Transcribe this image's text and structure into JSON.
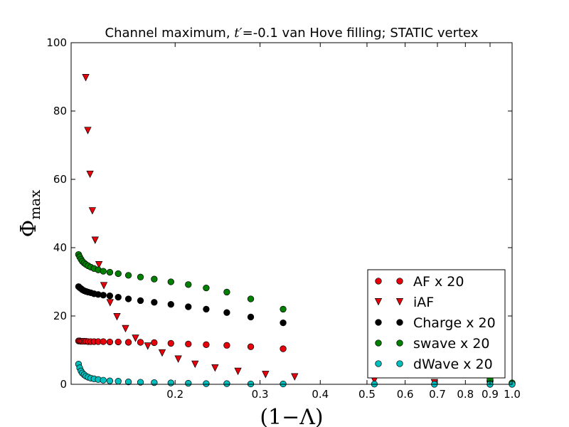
{
  "chart_data": {
    "type": "scatter",
    "title_prefix": "Channel maximum, ",
    "title_math": "t′",
    "title_suffix": "=-0.1 van Hove filling; STATIC vertex",
    "xlabel": "(1−Λ)",
    "ylabel_main": "Φ",
    "ylabel_sub": "max",
    "xscale": "log",
    "xlim": [
      0.1217,
      1.0
    ],
    "ylim": [
      0,
      100
    ],
    "x_ticks": [
      {
        "value": 0.2,
        "label": "0.2"
      },
      {
        "value": 0.3,
        "label": "0.3"
      },
      {
        "value": 0.4,
        "label": "0.4"
      },
      {
        "value": 0.5,
        "label": "0.5"
      },
      {
        "value": 0.6,
        "label": "0.6"
      },
      {
        "value": 0.7,
        "label": "0.7"
      },
      {
        "value": 0.8,
        "label": "0.8"
      },
      {
        "value": 0.9,
        "label": "0.9"
      },
      {
        "value": 1.0,
        "label": "1.0"
      }
    ],
    "y_ticks": [
      {
        "value": 0,
        "label": "0"
      },
      {
        "value": 20,
        "label": "20"
      },
      {
        "value": 40,
        "label": "40"
      },
      {
        "value": 60,
        "label": "60"
      },
      {
        "value": 80,
        "label": "80"
      },
      {
        "value": 100,
        "label": "100"
      }
    ],
    "legend_position": "lower-right",
    "series": [
      {
        "name": "AF x 20",
        "marker": "circle",
        "color": "#e8000b",
        "x": [
          0.1261,
          0.1268,
          0.1276,
          0.1284,
          0.1295,
          0.1306,
          0.132,
          0.1337,
          0.1358,
          0.1385,
          0.1419,
          0.1464,
          0.1524,
          0.16,
          0.1695,
          0.181,
          0.196,
          0.213,
          0.232,
          0.256,
          0.287,
          0.335,
          0.518,
          0.69,
          0.9,
          1.0
        ],
        "y": [
          12.7,
          12.7,
          12.6,
          12.6,
          12.6,
          12.6,
          12.5,
          12.5,
          12.5,
          12.5,
          12.5,
          12.4,
          12.4,
          12.3,
          12.3,
          12.2,
          12.0,
          11.8,
          11.6,
          11.4,
          11.0,
          10.4,
          5.4,
          2.9,
          0.8,
          0.2
        ]
      },
      {
        "name": "iAF",
        "marker": "triangle-down",
        "color": "#e8000b",
        "x": [
          0.1305,
          0.1318,
          0.1332,
          0.1347,
          0.1365,
          0.139,
          0.1423,
          0.1466,
          0.1515,
          0.1578,
          0.1655,
          0.1755,
          0.188,
          0.203,
          0.22,
          0.242,
          0.27,
          0.308,
          0.354,
          0.518,
          0.69,
          0.9
        ],
        "y": [
          89.8,
          74.3,
          61.5,
          50.8,
          42.2,
          35.0,
          28.9,
          23.9,
          19.8,
          16.3,
          13.5,
          11.2,
          9.2,
          7.4,
          5.9,
          4.8,
          3.8,
          2.9,
          2.2,
          1.2,
          0.5,
          0.1
        ]
      },
      {
        "name": "Charge x 20",
        "marker": "circle",
        "color": "#000000",
        "x": [
          0.1261,
          0.1268,
          0.1276,
          0.1284,
          0.1295,
          0.1306,
          0.132,
          0.1337,
          0.1358,
          0.1385,
          0.1419,
          0.1464,
          0.1524,
          0.16,
          0.1695,
          0.181,
          0.196,
          0.213,
          0.232,
          0.256,
          0.287,
          0.335,
          0.518,
          0.69,
          0.9,
          1.0
        ],
        "y": [
          28.6,
          28.3,
          28.0,
          27.7,
          27.4,
          27.2,
          27.0,
          26.8,
          26.5,
          26.3,
          26.1,
          25.9,
          25.5,
          25.0,
          24.5,
          24.0,
          23.4,
          22.7,
          22.0,
          21.0,
          19.7,
          18.0,
          8.8,
          3.5,
          1.0,
          0.3
        ]
      },
      {
        "name": "swave x 20",
        "marker": "circle",
        "color": "#008000",
        "x": [
          0.1261,
          0.1268,
          0.1276,
          0.1284,
          0.1295,
          0.1306,
          0.132,
          0.1337,
          0.1358,
          0.1385,
          0.1419,
          0.1464,
          0.1524,
          0.16,
          0.1695,
          0.181,
          0.196,
          0.213,
          0.232,
          0.256,
          0.287,
          0.335,
          0.518,
          0.69,
          0.9,
          1.0
        ],
        "y": [
          38.0,
          37.3,
          36.6,
          36.0,
          35.5,
          35.1,
          34.7,
          34.3,
          33.9,
          33.5,
          33.1,
          32.8,
          32.4,
          31.9,
          31.4,
          30.8,
          30.0,
          29.2,
          28.2,
          27.0,
          25.0,
          22.0,
          14.5,
          7.0,
          1.5,
          0.4
        ]
      },
      {
        "name": "dWave x 20",
        "marker": "circle",
        "color": "#00bfbf",
        "x": [
          0.1261,
          0.1268,
          0.1276,
          0.1284,
          0.1295,
          0.1306,
          0.132,
          0.1337,
          0.1358,
          0.1385,
          0.1419,
          0.1464,
          0.1524,
          0.16,
          0.1695,
          0.181,
          0.196,
          0.213,
          0.232,
          0.256,
          0.287,
          0.335,
          0.518,
          0.69,
          0.9,
          1.0
        ],
        "y": [
          5.9,
          4.8,
          3.9,
          3.3,
          2.8,
          2.4,
          2.1,
          1.8,
          1.6,
          1.4,
          1.2,
          1.0,
          0.9,
          0.7,
          0.6,
          0.5,
          0.4,
          0.3,
          0.2,
          0.2,
          0.1,
          0.1,
          0.05,
          0.02,
          0.01,
          0.0
        ]
      }
    ]
  }
}
